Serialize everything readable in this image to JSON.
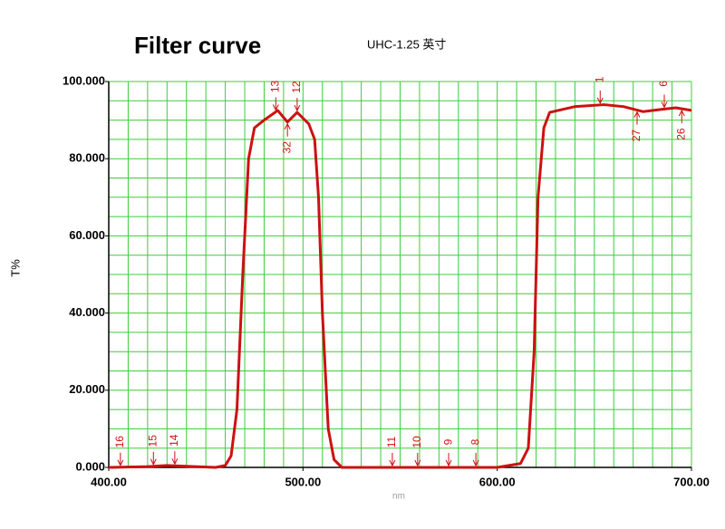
{
  "chart_data": {
    "type": "line",
    "title": "Filter curve",
    "subtitle": "UHC-1.25 英寸",
    "x_label": "nm",
    "y_label": "T%",
    "series": [
      {
        "name": "T%",
        "color": "#cc1111",
        "x": [
          400,
          420,
          430,
          440,
          455,
          460,
          463,
          466,
          469,
          472,
          475,
          480,
          487,
          492,
          497,
          503,
          506,
          508,
          510,
          513,
          516,
          520,
          600,
          612,
          616,
          619,
          621,
          624,
          627,
          640,
          655,
          665,
          675,
          685,
          692,
          700
        ],
        "values": [
          0,
          0.2,
          0.5,
          0.3,
          0,
          0.5,
          3,
          15,
          50,
          80,
          88,
          90,
          92.5,
          89.5,
          92,
          89,
          85,
          70,
          40,
          10,
          2,
          0,
          0,
          1,
          5,
          30,
          70,
          88,
          92,
          93.5,
          94,
          93.5,
          92.2,
          92.8,
          93.2,
          92.5
        ]
      }
    ],
    "markers": [
      {
        "x": 406,
        "label": "16",
        "position": "above"
      },
      {
        "x": 423,
        "label": "15",
        "position": "above"
      },
      {
        "x": 434,
        "label": "14",
        "position": "above"
      },
      {
        "x": 486,
        "label": "13",
        "position": "above"
      },
      {
        "x": 497,
        "label": "12",
        "position": "above"
      },
      {
        "x": 492,
        "label": "32",
        "position": "below"
      },
      {
        "x": 546,
        "label": "11",
        "position": "above"
      },
      {
        "x": 559,
        "label": "10",
        "position": "above"
      },
      {
        "x": 575,
        "label": "9",
        "position": "above"
      },
      {
        "x": 589,
        "label": "8",
        "position": "above"
      },
      {
        "x": 653,
        "label": "1",
        "position": "above"
      },
      {
        "x": 672,
        "label": "27",
        "position": "below"
      },
      {
        "x": 686,
        "label": "6",
        "position": "above"
      },
      {
        "x": 695,
        "label": "26",
        "position": "below"
      }
    ],
    "xlim": [
      400,
      700
    ],
    "ylim": [
      0,
      100
    ],
    "xticks": [
      {
        "value": 400,
        "label": "400.00"
      },
      {
        "value": 500,
        "label": "500.00"
      },
      {
        "value": 600,
        "label": "600.00"
      },
      {
        "value": 700,
        "label": "700.00"
      }
    ],
    "yticks": [
      {
        "value": 0,
        "label": "0.000"
      },
      {
        "value": 20,
        "label": "20.000"
      },
      {
        "value": 40,
        "label": "40.000"
      },
      {
        "value": 60,
        "label": "60.000"
      },
      {
        "value": 80,
        "label": "80.000"
      },
      {
        "value": 100,
        "label": "100.000"
      }
    ],
    "xgrid": [
      410,
      420,
      430,
      440,
      450,
      460,
      470,
      480,
      490,
      500,
      510,
      520,
      530,
      540,
      550,
      560,
      570,
      580,
      590,
      600,
      610,
      620,
      630,
      640,
      650,
      660,
      670,
      680,
      690,
      700
    ],
    "ygrid": [
      5,
      10,
      15,
      20,
      25,
      30,
      35,
      40,
      45,
      50,
      55,
      60,
      65,
      70,
      75,
      80,
      85,
      90,
      95,
      100
    ],
    "grid_color": "#3ccc3c",
    "marker_color": "#cc1111"
  }
}
